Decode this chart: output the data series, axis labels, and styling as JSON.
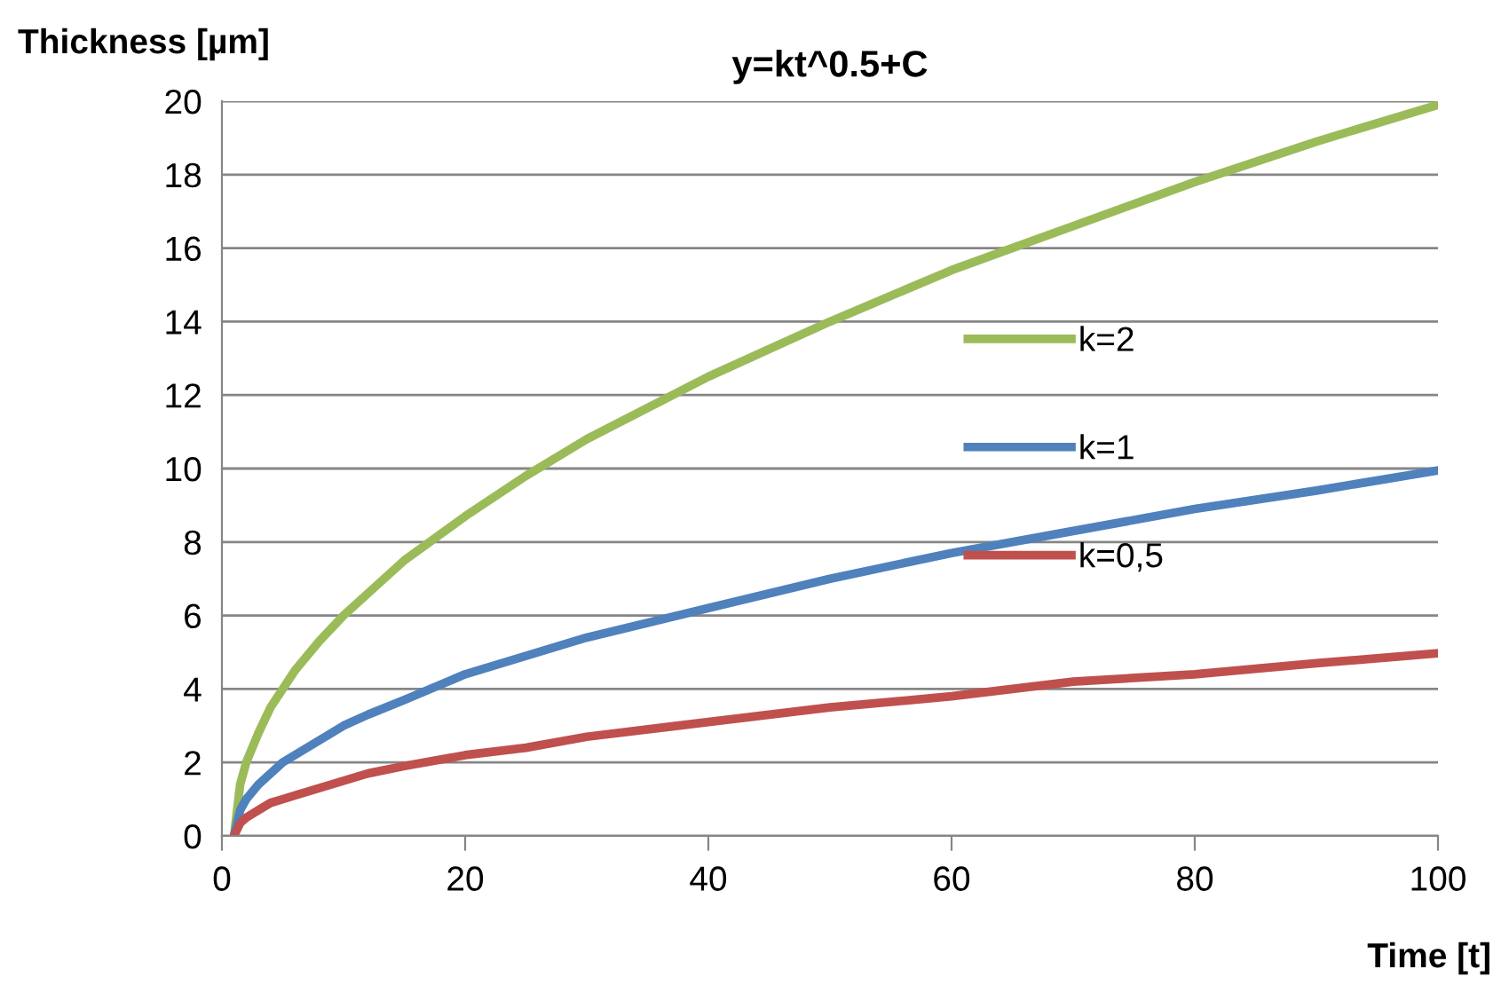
{
  "chart_data": {
    "type": "line",
    "title": "y=kt^0.5+C",
    "xlabel": "Time [t]",
    "ylabel": "Thickness [µm]",
    "x": [
      1,
      1.5,
      2,
      3,
      4,
      5,
      6,
      8,
      10,
      12,
      15,
      20,
      25,
      30,
      40,
      50,
      60,
      70,
      80,
      90,
      100
    ],
    "series": [
      {
        "name": "k=2",
        "color": "#9bbb59",
        "values": [
          0,
          1.4,
          2,
          2.8,
          3.5,
          4,
          4.5,
          5.3,
          6,
          6.6,
          7.5,
          8.7,
          9.8,
          10.8,
          12.5,
          14,
          15.4,
          16.6,
          17.8,
          18.9,
          19.9
        ]
      },
      {
        "name": "k=1",
        "color": "#4f81bd",
        "values": [
          0,
          0.7,
          1,
          1.4,
          1.7,
          2,
          2.2,
          2.6,
          3,
          3.3,
          3.7,
          4.4,
          4.9,
          5.4,
          6.2,
          7,
          7.7,
          8.3,
          8.9,
          9.4,
          9.95
        ]
      },
      {
        "name": "k=0,5",
        "color": "#c0504d",
        "values": [
          0,
          0.35,
          0.5,
          0.7,
          0.9,
          1,
          1.1,
          1.3,
          1.5,
          1.7,
          1.9,
          2.2,
          2.4,
          2.7,
          3.1,
          3.5,
          3.8,
          4.2,
          4.4,
          4.7,
          4.97
        ]
      }
    ],
    "xlim": [
      0,
      100
    ],
    "xticks": [
      0,
      20,
      40,
      60,
      80,
      100
    ],
    "ylim": [
      0,
      20
    ],
    "yticks": [
      0,
      2,
      4,
      6,
      8,
      10,
      12,
      14,
      16,
      18,
      20
    ],
    "grid": "y",
    "legend": "right",
    "marker": "none",
    "line_style": "solid"
  }
}
